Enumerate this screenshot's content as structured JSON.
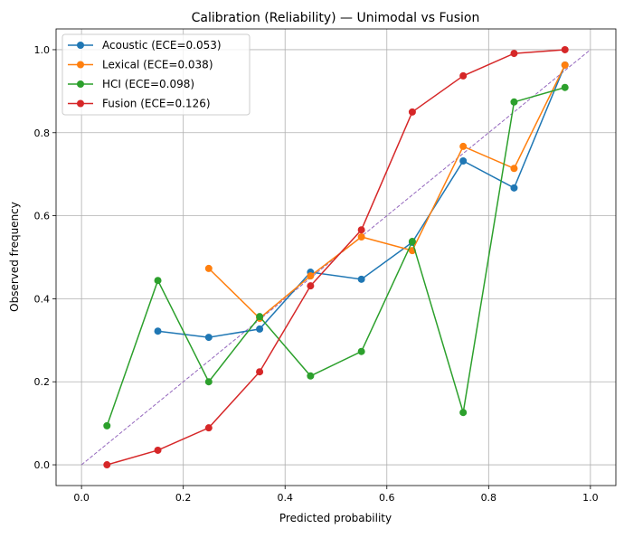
{
  "chart_data": {
    "type": "line",
    "title": "Calibration (Reliability) — Unimodal vs Fusion",
    "xlabel": "Predicted probability",
    "ylabel": "Observed frequency",
    "xlim": [
      -0.05,
      1.05
    ],
    "ylim": [
      -0.05,
      1.05
    ],
    "xticks": [
      "0.0",
      "0.2",
      "0.4",
      "0.6",
      "0.8",
      "1.0"
    ],
    "yticks": [
      "0.0",
      "0.2",
      "0.4",
      "0.6",
      "0.8",
      "1.0"
    ],
    "grid": true,
    "legend_position": "top-left",
    "reference_line": {
      "x": [
        0,
        1
      ],
      "y": [
        0,
        1
      ],
      "color": "#9467bd",
      "style": "dashed"
    },
    "series": [
      {
        "name": "Acoustic (ECE=0.053)",
        "color": "#1f77b4",
        "x": [
          0.15,
          0.25,
          0.35,
          0.45,
          0.55,
          0.65,
          0.75,
          0.85,
          0.95
        ],
        "y": [
          0.322,
          0.307,
          0.327,
          0.464,
          0.447,
          0.536,
          0.732,
          0.667,
          0.963
        ]
      },
      {
        "name": "Lexical (ECE=0.038)",
        "color": "#ff7f0e",
        "x": [
          0.25,
          0.35,
          0.45,
          0.55,
          0.65,
          0.75,
          0.85,
          0.95
        ],
        "y": [
          0.473,
          0.353,
          0.455,
          0.549,
          0.516,
          0.767,
          0.714,
          0.963
        ]
      },
      {
        "name": "HCI (ECE=0.098)",
        "color": "#2ca02c",
        "x": [
          0.05,
          0.15,
          0.25,
          0.35,
          0.45,
          0.55,
          0.65,
          0.75,
          0.85,
          0.95
        ],
        "y": [
          0.094,
          0.444,
          0.2,
          0.357,
          0.214,
          0.273,
          0.538,
          0.126,
          0.874,
          0.909
        ]
      },
      {
        "name": "Fusion (ECE=0.126)",
        "color": "#d62728",
        "x": [
          0.05,
          0.15,
          0.25,
          0.35,
          0.45,
          0.55,
          0.65,
          0.75,
          0.85,
          0.95
        ],
        "y": [
          0.0,
          0.035,
          0.089,
          0.224,
          0.431,
          0.566,
          0.85,
          0.937,
          0.991,
          1.0
        ]
      }
    ]
  }
}
